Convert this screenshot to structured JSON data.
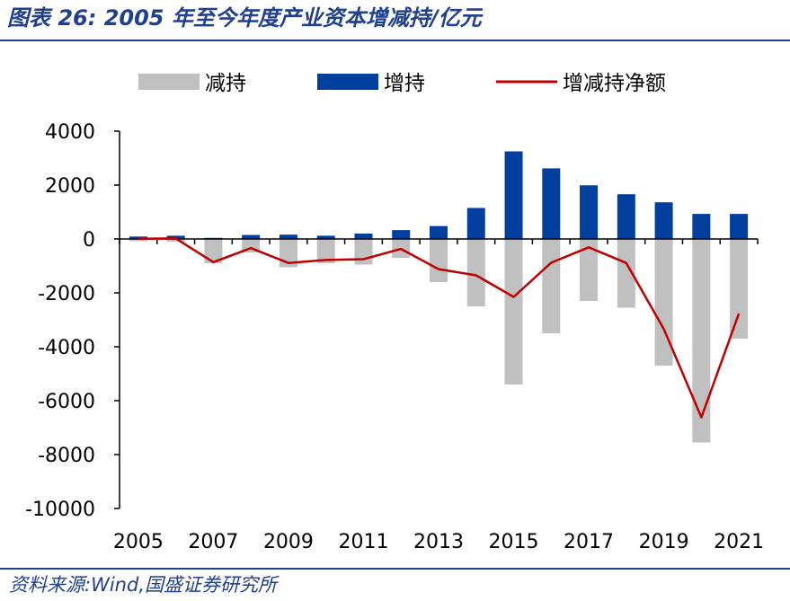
{
  "header": {
    "title": "图表 26:  2005 年至今年度产业资本增减持/亿元"
  },
  "footer": {
    "source": "资料来源:Wind,国盛证券研究所"
  },
  "chart_data": {
    "type": "bar",
    "title": "2005 年至今年度产业资本增减持/亿元",
    "ylim": [
      -10000,
      4000
    ],
    "yticks": [
      4000,
      2000,
      0,
      -2000,
      -4000,
      -6000,
      -8000,
      -10000
    ],
    "categories": [
      "2005",
      "2006",
      "2007",
      "2008",
      "2009",
      "2010",
      "2011",
      "2012",
      "2013",
      "2014",
      "2015",
      "2016",
      "2017",
      "2018",
      "2019",
      "2020",
      "2021"
    ],
    "xtick_labels": [
      "2005",
      "",
      "2007",
      "",
      "2009",
      "",
      "2011",
      "",
      "2013",
      "",
      "2015",
      "",
      "2017",
      "",
      "2019",
      "",
      "2021"
    ],
    "legend_position": "top",
    "grid": false,
    "series": [
      {
        "name": "减持",
        "type": "bar",
        "color": "#c0c0c0",
        "values": [
          -80,
          -100,
          -900,
          -500,
          -1050,
          -900,
          -950,
          -700,
          -1600,
          -2500,
          -5400,
          -3500,
          -2300,
          -2550,
          -4700,
          -7550,
          -3700
        ]
      },
      {
        "name": "增持",
        "type": "bar",
        "color": "#003f9e",
        "values": [
          90,
          120,
          40,
          150,
          160,
          120,
          200,
          330,
          480,
          1150,
          3250,
          2620,
          1990,
          1660,
          1360,
          930,
          930
        ]
      },
      {
        "name": "增减持净额",
        "type": "line",
        "color": "#c00000",
        "values": [
          10,
          20,
          -860,
          -340,
          -890,
          -780,
          -750,
          -370,
          -1120,
          -1350,
          -2150,
          -880,
          -310,
          -890,
          -3340,
          -6620,
          -2770
        ]
      }
    ]
  }
}
